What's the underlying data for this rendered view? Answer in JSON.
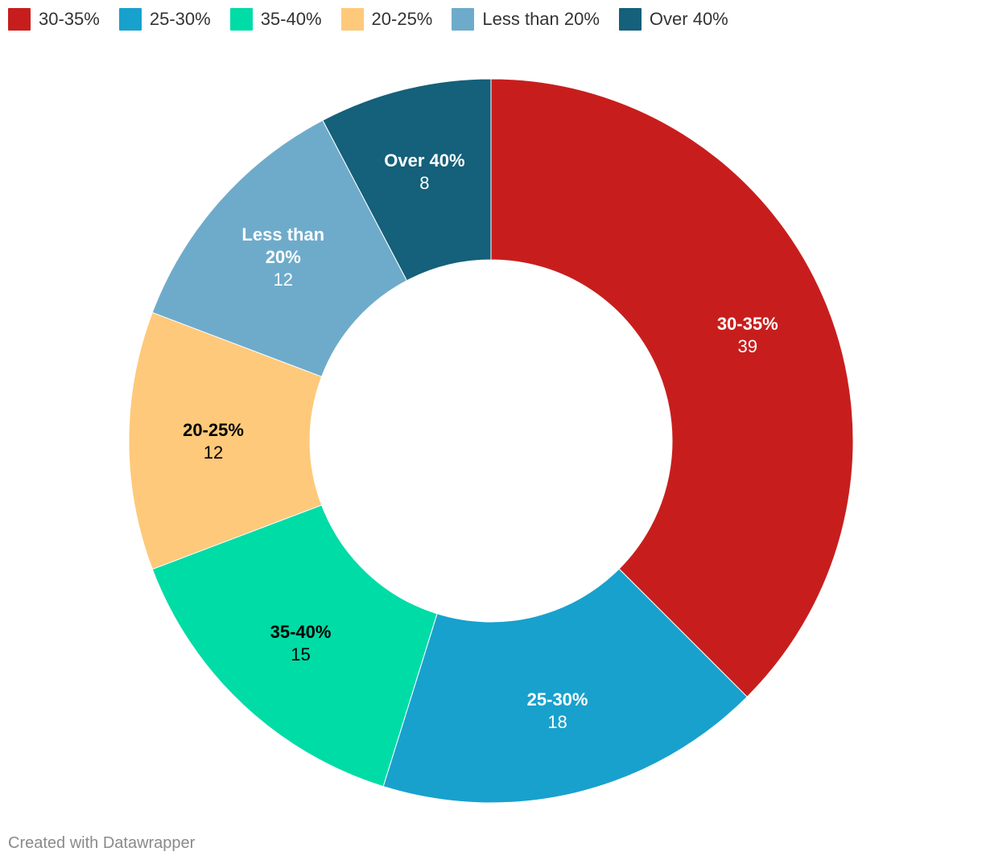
{
  "chart_data": {
    "type": "pie",
    "variant": "donut",
    "slices": [
      {
        "label": "30-35%",
        "label_lines": [
          "30-35%"
        ],
        "value": 39,
        "color": "#c71e1d",
        "text_color": "#ffffff"
      },
      {
        "label": "25-30%",
        "label_lines": [
          "25-30%"
        ],
        "value": 18,
        "color": "#18a1cd",
        "text_color": "#ffffff"
      },
      {
        "label": "35-40%",
        "label_lines": [
          "35-40%"
        ],
        "value": 15,
        "color": "#00dca6",
        "text_color": "#000000"
      },
      {
        "label": "20-25%",
        "label_lines": [
          "20-25%"
        ],
        "value": 12,
        "color": "#fec97a",
        "text_color": "#000000"
      },
      {
        "label": "Less than 20%",
        "label_lines": [
          "Less than",
          "20%"
        ],
        "value": 12,
        "color": "#6eabca",
        "text_color": "#ffffff"
      },
      {
        "label": "Over 40%",
        "label_lines": [
          "Over 40%"
        ],
        "value": 8,
        "color": "#15607a",
        "text_color": "#ffffff"
      }
    ],
    "legend": {
      "placement": "top-left",
      "entries": [
        "30-35%",
        "25-30%",
        "35-40%",
        "20-25%",
        "Less than 20%",
        "Over 40%"
      ]
    }
  },
  "footer": {
    "credit": "Created with Datawrapper"
  }
}
